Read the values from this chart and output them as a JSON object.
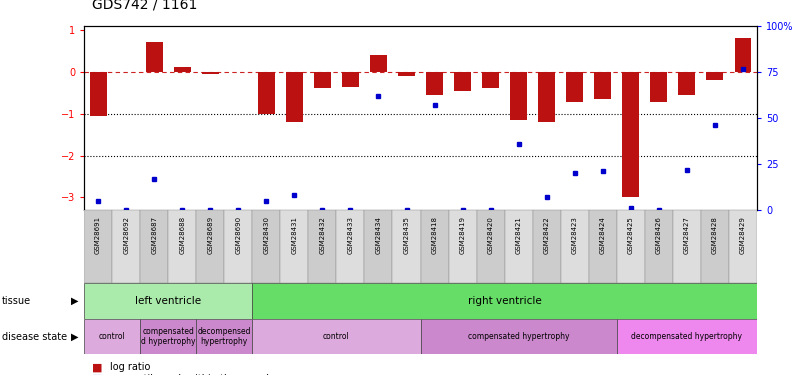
{
  "title": "GDS742 / 1161",
  "samples": [
    "GSM28691",
    "GSM28692",
    "GSM28687",
    "GSM28688",
    "GSM28689",
    "GSM28690",
    "GSM28430",
    "GSM28431",
    "GSM28432",
    "GSM28433",
    "GSM28434",
    "GSM28435",
    "GSM28418",
    "GSM28419",
    "GSM28420",
    "GSM28421",
    "GSM28422",
    "GSM28423",
    "GSM28424",
    "GSM28425",
    "GSM28426",
    "GSM28427",
    "GSM28428",
    "GSM28429"
  ],
  "log_ratio": [
    -1.05,
    0.0,
    0.72,
    0.12,
    -0.05,
    0.0,
    -1.0,
    -1.2,
    -0.38,
    -0.35,
    0.42,
    -0.08,
    -0.55,
    -0.45,
    -0.38,
    -1.15,
    -1.2,
    -0.72,
    -0.65,
    -3.0,
    -0.72,
    -0.55,
    -0.18,
    0.82
  ],
  "percentile": [
    5,
    0,
    17,
    0,
    0,
    0,
    5,
    8,
    0,
    0,
    62,
    0,
    57,
    0,
    0,
    36,
    7,
    20,
    21,
    1,
    0,
    22,
    46,
    77
  ],
  "ylim_left": [
    -3.3,
    1.1
  ],
  "ylim_right": [
    0,
    100
  ],
  "yticks_left": [
    -3,
    -2,
    -1,
    0,
    1
  ],
  "yticks_right": [
    0,
    25,
    50,
    75,
    100
  ],
  "hline_y": [
    -1,
    -2
  ],
  "bar_color": "#bb1111",
  "square_color": "#0000cc",
  "zero_line_color": "#cc2222",
  "tissue_groups": [
    {
      "label": "left ventricle",
      "start": 0,
      "end": 6,
      "color": "#aaeaaa"
    },
    {
      "label": "right ventricle",
      "start": 6,
      "end": 24,
      "color": "#66dd66"
    }
  ],
  "disease_groups": [
    {
      "label": "control",
      "start": 0,
      "end": 2,
      "color": "#ddaadd"
    },
    {
      "label": "compensated\nd hypertrophy",
      "start": 2,
      "end": 4,
      "color": "#cc88cc"
    },
    {
      "label": "decompensed\nhypertrophy",
      "start": 4,
      "end": 6,
      "color": "#cc88cc"
    },
    {
      "label": "control",
      "start": 6,
      "end": 12,
      "color": "#ddaadd"
    },
    {
      "label": "compensated hypertrophy",
      "start": 12,
      "end": 19,
      "color": "#cc88cc"
    },
    {
      "label": "decompensated hypertrophy",
      "start": 19,
      "end": 24,
      "color": "#ee88ee"
    }
  ]
}
